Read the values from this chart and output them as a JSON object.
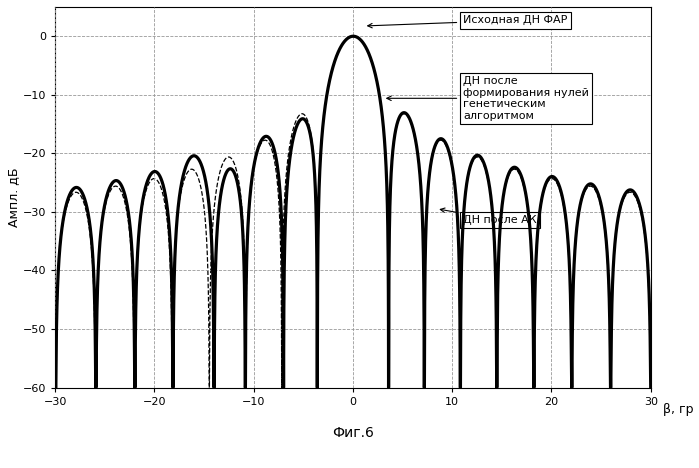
{
  "title": "Фиг.6",
  "ylabel": "Ампл. дБ",
  "xlabel": "β, гр",
  "xlim": [
    -30,
    30
  ],
  "ylim": [
    -60,
    5
  ],
  "yticks": [
    0,
    -10,
    -20,
    -30,
    -40,
    -50,
    -60
  ],
  "xticks": [
    -30,
    -20,
    -10,
    0,
    10,
    20,
    30
  ],
  "legend1": "Исходная ДН ФАР",
  "legend2": "ДН после\nформирования нулей\nгенетическим\nалгоритмом",
  "legend3": "ДН после АК",
  "background": "#ffffff",
  "grid_color": "#999999",
  "N": 32,
  "d": 0.5
}
